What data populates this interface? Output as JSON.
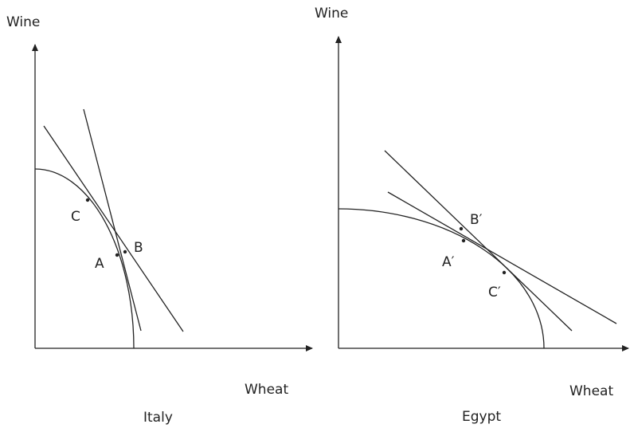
{
  "panels": [
    {
      "title": "Italy",
      "y_axis_label": "Wine",
      "x_axis_label": "Wheat",
      "points": [
        "C",
        "A",
        "B"
      ]
    },
    {
      "title": "Egypt",
      "y_axis_label": "Wine",
      "x_axis_label": "Wheat",
      "points": [
        "B′",
        "A′",
        "C′"
      ]
    }
  ]
}
